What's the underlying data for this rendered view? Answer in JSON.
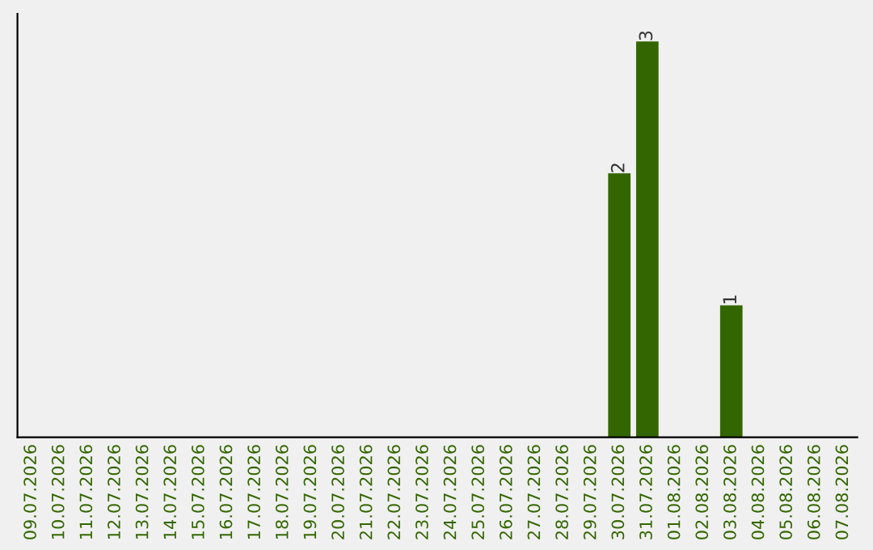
{
  "chart_data": {
    "type": "bar",
    "categories": [
      "09.07.2026",
      "10.07.2026",
      "11.07.2026",
      "12.07.2026",
      "13.07.2026",
      "14.07.2026",
      "15.07.2026",
      "16.07.2026",
      "17.07.2026",
      "18.07.2026",
      "19.07.2026",
      "20.07.2026",
      "21.07.2026",
      "22.07.2026",
      "23.07.2026",
      "24.07.2026",
      "25.07.2026",
      "26.07.2026",
      "27.07.2026",
      "28.07.2026",
      "29.07.2026",
      "30.07.2026",
      "31.07.2026",
      "01.08.2026",
      "02.08.2026",
      "03.08.2026",
      "04.08.2026",
      "05.08.2026",
      "06.08.2026",
      "07.08.2026"
    ],
    "values": [
      null,
      null,
      null,
      null,
      null,
      null,
      null,
      null,
      null,
      null,
      null,
      null,
      null,
      null,
      null,
      null,
      null,
      null,
      null,
      null,
      null,
      2,
      3,
      null,
      null,
      1,
      null,
      null,
      null,
      null
    ],
    "value_labels": [
      null,
      null,
      null,
      null,
      null,
      null,
      null,
      null,
      null,
      null,
      null,
      null,
      null,
      null,
      null,
      null,
      null,
      null,
      null,
      null,
      null,
      "2",
      "3",
      null,
      null,
      "1",
      null,
      null,
      null,
      null
    ],
    "color": "#336600",
    "tick_labels": "x",
    "grid": false
  }
}
